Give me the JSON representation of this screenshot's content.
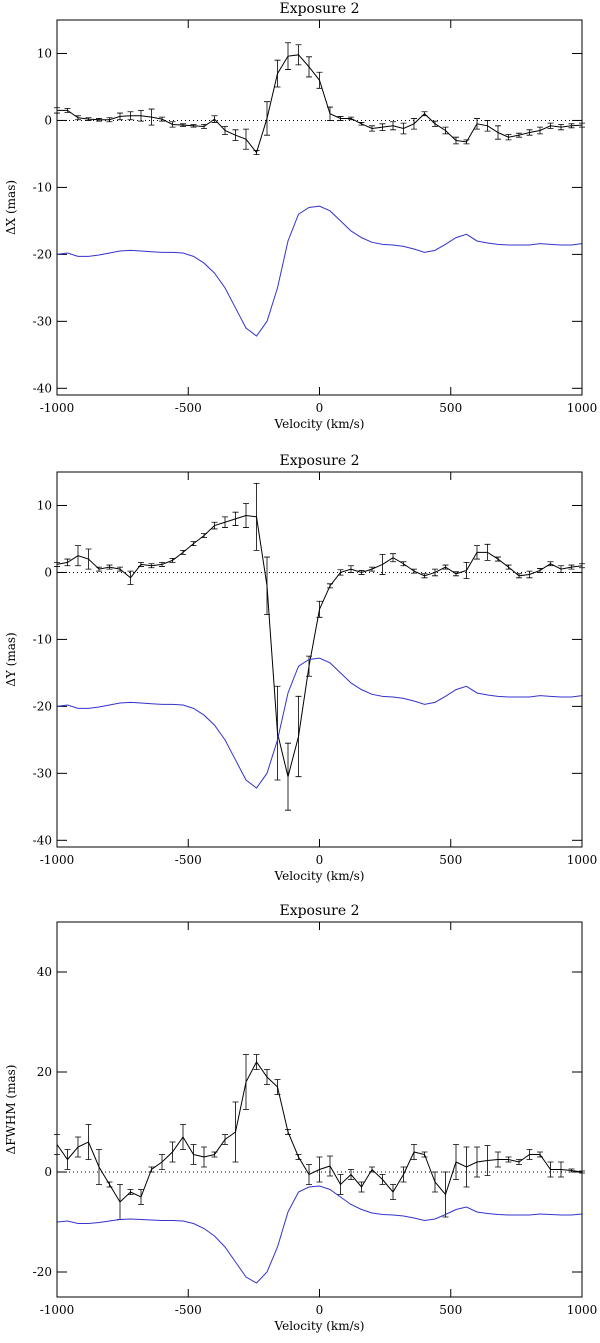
{
  "chart_data": [
    {
      "type": "line",
      "title": "Exposure 2",
      "xlabel": "Velocity (km/s)",
      "ylabel": "ΔX (mas)",
      "xlim": [
        -1000,
        1000
      ],
      "xticks": [
        -1000,
        -500,
        0,
        500,
        1000
      ],
      "ylim": [
        -41,
        15
      ],
      "yticks": [
        -40,
        -30,
        -20,
        -10,
        0,
        10
      ],
      "hline": 0,
      "x": [
        -1000,
        -960,
        -920,
        -880,
        -840,
        -800,
        -760,
        -720,
        -680,
        -640,
        -600,
        -560,
        -520,
        -480,
        -440,
        -400,
        -360,
        -320,
        -280,
        -240,
        -200,
        -160,
        -120,
        -80,
        -40,
        0,
        40,
        80,
        120,
        160,
        200,
        240,
        280,
        320,
        360,
        400,
        440,
        480,
        520,
        560,
        600,
        640,
        680,
        720,
        760,
        800,
        840,
        880,
        920,
        960,
        1000
      ],
      "series": [
        {
          "color": "#000000",
          "values": [
            1.5,
            1.5,
            0.4,
            0.2,
            0.1,
            0.1,
            0.6,
            0.7,
            0.7,
            0.5,
            0.2,
            -0.6,
            -0.7,
            -0.8,
            -0.9,
            0.2,
            -1.5,
            -2.2,
            -2.8,
            -4.8,
            0.3,
            7,
            9.6,
            9.8,
            8,
            6,
            1,
            0.3,
            0.3,
            -0.5,
            -1.2,
            -1,
            -0.8,
            -1.2,
            -0.5,
            1,
            -0.5,
            -1.5,
            -3,
            -3.2,
            -0.5,
            -0.8,
            -1.8,
            -2.5,
            -2.2,
            -1.8,
            -1.5,
            -0.8,
            -1,
            -0.8,
            -0.7
          ],
          "errors": [
            0.4,
            0.3,
            0.3,
            0.2,
            0.2,
            0.3,
            0.5,
            0.6,
            0.8,
            1.2,
            0.3,
            0.4,
            0.2,
            0.2,
            0.3,
            0.5,
            0.6,
            0.8,
            1.5,
            0.3,
            2.5,
            2,
            2,
            1.5,
            1.5,
            1.2,
            1,
            0.3,
            0.2,
            0.2,
            0.4,
            0.5,
            0.6,
            0.8,
            0.8,
            0.3,
            0.4,
            0.5,
            0.5,
            0.3,
            0.8,
            0.8,
            1,
            0.4,
            0.3,
            0.4,
            0.5,
            0.4,
            0.4,
            0.3,
            0.3
          ]
        },
        {
          "color": "#3333cc",
          "values": [
            -20,
            -19.8,
            -20.3,
            -20.3,
            -20.1,
            -19.8,
            -19.5,
            -19.4,
            -19.5,
            -19.6,
            -19.7,
            -19.7,
            -19.8,
            -20.3,
            -21.3,
            -22.8,
            -25,
            -28,
            -31,
            -32.2,
            -30,
            -25,
            -18,
            -14,
            -13,
            -12.8,
            -13.5,
            -15,
            -16.5,
            -17.5,
            -18.2,
            -18.5,
            -18.6,
            -18.8,
            -19.2,
            -19.7,
            -19.4,
            -18.5,
            -17.5,
            -17,
            -18,
            -18.3,
            -18.5,
            -18.6,
            -18.6,
            -18.6,
            -18.4,
            -18.5,
            -18.6,
            -18.6,
            -18.4
          ]
        }
      ]
    },
    {
      "type": "line",
      "title": "Exposure 2",
      "xlabel": "Velocity (km/s)",
      "ylabel": "ΔY (mas)",
      "xlim": [
        -1000,
        1000
      ],
      "xticks": [
        -1000,
        -500,
        0,
        500,
        1000
      ],
      "ylim": [
        -41,
        15
      ],
      "yticks": [
        -40,
        -30,
        -20,
        -10,
        0,
        10
      ],
      "hline": 0,
      "x": [
        -1000,
        -960,
        -920,
        -880,
        -840,
        -800,
        -760,
        -720,
        -680,
        -640,
        -600,
        -560,
        -520,
        -480,
        -440,
        -400,
        -360,
        -320,
        -280,
        -240,
        -200,
        -160,
        -120,
        -80,
        -40,
        0,
        40,
        80,
        120,
        160,
        200,
        240,
        280,
        320,
        360,
        400,
        440,
        480,
        520,
        560,
        600,
        640,
        680,
        720,
        760,
        800,
        840,
        880,
        920,
        960,
        1000
      ],
      "series": [
        {
          "color": "#000000",
          "values": [
            1.2,
            1.5,
            2.5,
            2,
            0.5,
            0.8,
            0.5,
            -0.8,
            1.2,
            1,
            1.2,
            1.8,
            3,
            4.3,
            5.5,
            7,
            7.5,
            8,
            8.5,
            8.3,
            -2,
            -24,
            -30.5,
            -24.5,
            -14,
            -5.5,
            -2,
            0,
            0.5,
            0,
            0.5,
            1.2,
            2.2,
            1.3,
            0.2,
            -0.5,
            0,
            0.8,
            -0.2,
            0.3,
            3,
            3,
            2,
            0.8,
            -0.5,
            -0.3,
            0.3,
            1.3,
            0.5,
            0.8,
            1
          ],
          "errors": [
            0.3,
            0.5,
            1.5,
            1.5,
            0.3,
            0.3,
            0.3,
            1,
            0.3,
            0.3,
            0.3,
            0.3,
            0.3,
            0.3,
            0.3,
            0.5,
            0.8,
            1,
            1.8,
            5,
            4.3,
            7,
            5,
            6,
            1.5,
            1.2,
            0.3,
            0.4,
            0.5,
            0.3,
            0.3,
            1.5,
            0.6,
            0.3,
            0.3,
            0.3,
            0.5,
            0.3,
            0.3,
            1.2,
            1,
            1.2,
            0.3,
            0.3,
            0.3,
            0.5,
            0.3,
            0.3,
            0.5,
            0.3,
            0.3
          ]
        },
        {
          "color": "#3333cc",
          "values": [
            -20,
            -19.8,
            -20.3,
            -20.3,
            -20.1,
            -19.8,
            -19.5,
            -19.4,
            -19.5,
            -19.6,
            -19.7,
            -19.7,
            -19.8,
            -20.3,
            -21.3,
            -22.8,
            -25,
            -28,
            -31,
            -32.2,
            -30,
            -25,
            -18,
            -14,
            -13,
            -12.8,
            -13.5,
            -15,
            -16.5,
            -17.5,
            -18.2,
            -18.5,
            -18.6,
            -18.8,
            -19.2,
            -19.7,
            -19.4,
            -18.5,
            -17.5,
            -17,
            -18,
            -18.3,
            -18.5,
            -18.6,
            -18.6,
            -18.6,
            -18.4,
            -18.5,
            -18.6,
            -18.6,
            -18.4
          ]
        }
      ]
    },
    {
      "type": "line",
      "title": "Exposure 2",
      "xlabel": "Velocity (km/s)",
      "ylabel": "ΔFWHM (mas)",
      "xlim": [
        -1000,
        1000
      ],
      "xticks": [
        -1000,
        -500,
        0,
        500,
        1000
      ],
      "ylim": [
        -25,
        50
      ],
      "yticks": [
        -20,
        0,
        20,
        40
      ],
      "hline": 0,
      "x": [
        -1000,
        -960,
        -920,
        -880,
        -840,
        -800,
        -760,
        -720,
        -680,
        -640,
        -600,
        -560,
        -520,
        -480,
        -440,
        -400,
        -360,
        -320,
        -280,
        -240,
        -200,
        -160,
        -120,
        -80,
        -40,
        0,
        40,
        80,
        120,
        160,
        200,
        240,
        280,
        320,
        360,
        400,
        440,
        480,
        520,
        560,
        600,
        640,
        680,
        720,
        760,
        800,
        840,
        880,
        920,
        960,
        1000
      ],
      "series": [
        {
          "color": "#000000",
          "values": [
            5.5,
            2.5,
            5,
            6,
            1,
            -2.5,
            -6,
            -4,
            -5,
            0.5,
            2,
            4,
            7,
            3.5,
            3,
            3.5,
            6.5,
            8,
            18,
            22,
            19,
            17,
            8,
            3,
            -0.5,
            0.5,
            1.2,
            -2.5,
            -0.5,
            -3,
            0.5,
            -1.5,
            -4,
            -0.5,
            4,
            3.5,
            -2,
            -4.5,
            2,
            1,
            2,
            2.3,
            2.5,
            2.5,
            2,
            3.5,
            3.5,
            0.5,
            0.5,
            0.3,
            0
          ],
          "errors": [
            2,
            2,
            2,
            3.5,
            3.5,
            0.5,
            3.5,
            0.5,
            1.5,
            0.5,
            1.5,
            2,
            2.5,
            2,
            2,
            0.5,
            1,
            6,
            5.5,
            1.5,
            1.5,
            1.5,
            0.5,
            0.5,
            2,
            2.5,
            2,
            2,
            1,
            1,
            0.5,
            1,
            1.5,
            1.5,
            1.5,
            0.5,
            2,
            4.5,
            3.5,
            4,
            3,
            3,
            1.5,
            0.5,
            0.5,
            1,
            0.5,
            1.5,
            1.5,
            0.3,
            0.2
          ]
        },
        {
          "color": "#3333cc",
          "values": [
            -10,
            -9.8,
            -10.3,
            -10.3,
            -10.1,
            -9.8,
            -9.5,
            -9.4,
            -9.5,
            -9.6,
            -9.7,
            -9.7,
            -9.8,
            -10.3,
            -11.3,
            -12.8,
            -15,
            -18,
            -21,
            -22.2,
            -20,
            -15,
            -8,
            -4,
            -3,
            -2.8,
            -3.5,
            -5,
            -6.5,
            -7.5,
            -8.2,
            -8.5,
            -8.6,
            -8.8,
            -9.2,
            -9.7,
            -9.4,
            -8.5,
            -7.5,
            -7,
            -8,
            -8.3,
            -8.5,
            -8.6,
            -8.6,
            -8.6,
            -8.4,
            -8.5,
            -8.6,
            -8.6,
            -8.4
          ]
        }
      ]
    }
  ]
}
